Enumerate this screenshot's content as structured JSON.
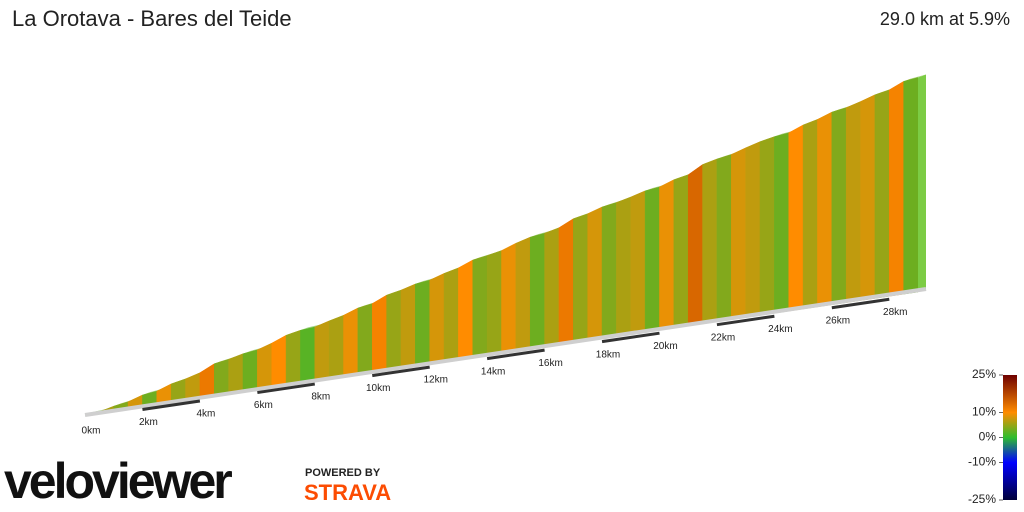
{
  "chart_data": {
    "type": "profile3d",
    "title": "La Orotava - Bares del Teide",
    "subtitle": "29.0 km at 5.9%",
    "xlim": [
      0,
      29
    ],
    "xticks": [
      {
        "value": 0,
        "label": "0km"
      },
      {
        "value": 2,
        "label": "2km"
      },
      {
        "value": 4,
        "label": "4km"
      },
      {
        "value": 6,
        "label": "6km"
      },
      {
        "value": 8,
        "label": "8km"
      },
      {
        "value": 10,
        "label": "10km"
      },
      {
        "value": 12,
        "label": "12km"
      },
      {
        "value": 14,
        "label": "14km"
      },
      {
        "value": 16,
        "label": "16km"
      },
      {
        "value": 18,
        "label": "18km"
      },
      {
        "value": 20,
        "label": "20km"
      },
      {
        "value": 22,
        "label": "22km"
      },
      {
        "value": 24,
        "label": "24km"
      },
      {
        "value": 26,
        "label": "26km"
      },
      {
        "value": 28,
        "label": "28km"
      }
    ],
    "values": [
      2,
      6,
      4,
      8,
      3,
      9,
      5,
      7,
      12,
      4,
      6,
      3,
      8,
      10,
      5,
      2,
      7,
      6,
      9,
      4,
      11,
      5,
      7,
      3,
      8,
      6,
      10,
      4,
      5,
      9,
      7,
      3,
      6,
      12,
      5,
      8,
      4,
      6,
      7,
      3,
      9,
      5,
      14,
      6,
      4,
      8,
      7,
      5,
      3,
      10,
      6,
      9,
      4,
      7,
      8,
      5,
      11,
      3
    ],
    "colorbar": {
      "lim": [
        -25,
        25
      ],
      "ticks": [
        {
          "value": 25,
          "label": "25%",
          "color": "#6e0000"
        },
        {
          "value": 10,
          "label": "10%",
          "color": "#ff8c00"
        },
        {
          "value": 0,
          "label": "0%",
          "color": "#2ebd2e"
        },
        {
          "value": -10,
          "label": "-10%",
          "color": "#0000ff"
        },
        {
          "value": -25,
          "label": "-25%",
          "color": "#00003a"
        }
      ]
    }
  },
  "branding": {
    "logo": "veloviewer",
    "powered_by": "POWERED BY",
    "partner": "STRAVA"
  }
}
